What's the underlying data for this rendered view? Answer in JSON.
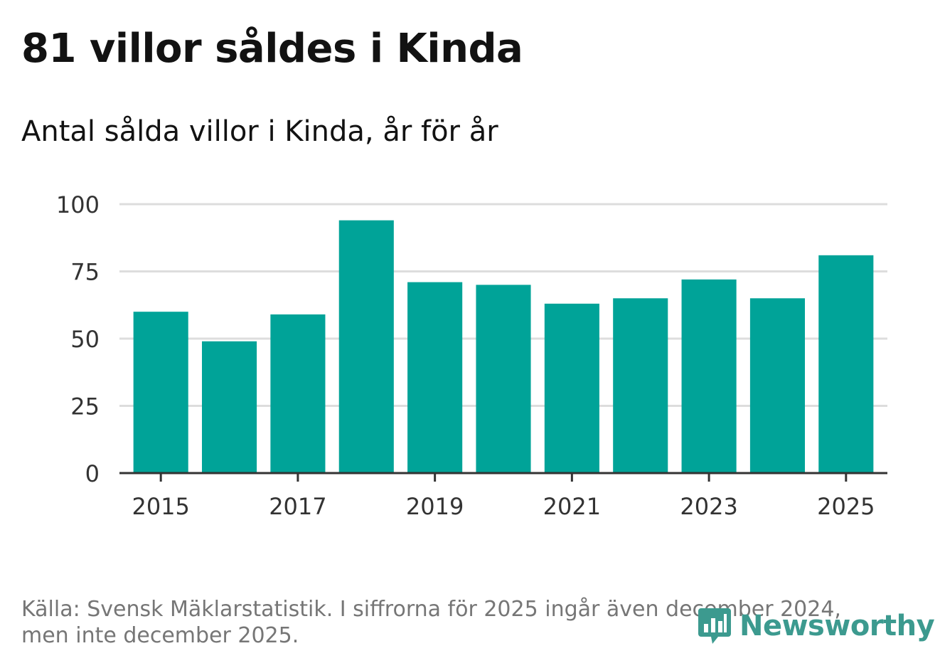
{
  "title": "81 villor såldes i Kinda",
  "subtitle": "Antal sålda villor i Kinda, år för år",
  "footer": {
    "line1": "Källa: Svensk Mäklarstatistik. I siffrorna för 2025 ingår även december 2024,",
    "line2": "men inte december 2025."
  },
  "logo": {
    "text": "Newsworthy",
    "icon": "newsworthy-logo-icon"
  },
  "colors": {
    "bar": "#00a398",
    "grid": "#dddddd",
    "axis": "#333333",
    "logo": "#3c9a8f"
  },
  "chart_data": {
    "type": "bar",
    "title": "81 villor såldes i Kinda",
    "subtitle": "Antal sålda villor i Kinda, år för år",
    "xlabel": "",
    "ylabel": "",
    "categories": [
      "2015",
      "2016",
      "2017",
      "2018",
      "2019",
      "2020",
      "2021",
      "2022",
      "2023",
      "2024",
      "2025"
    ],
    "values": [
      60,
      49,
      59,
      94,
      71,
      70,
      63,
      65,
      72,
      65,
      81
    ],
    "ylim": [
      0,
      100
    ],
    "yticks": [
      0,
      25,
      50,
      75,
      100
    ],
    "xtick_labels": [
      "2015",
      "2017",
      "2019",
      "2021",
      "2023",
      "2025"
    ],
    "grid": true
  }
}
